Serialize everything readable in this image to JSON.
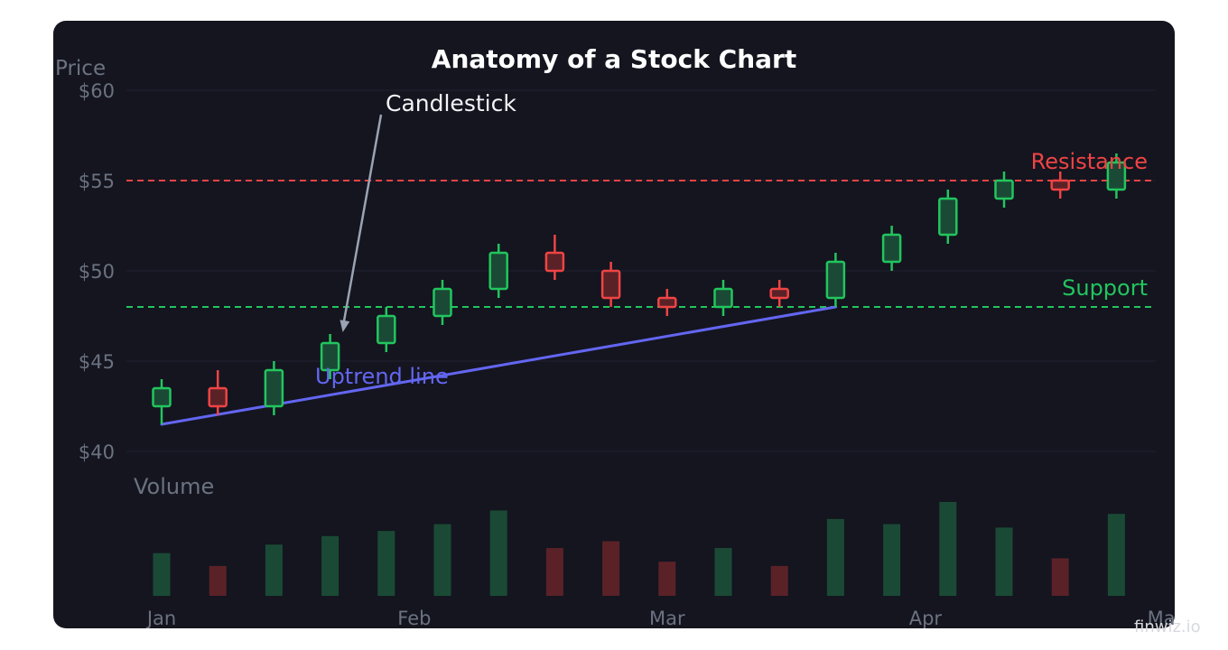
{
  "watermark": "finwiz.io",
  "colors": {
    "background": "#14151f",
    "grid": "#1f2130",
    "axis_text": "#6b7280",
    "title": "#ffffff",
    "up": "#22c55e",
    "up_fill": "#1a4a35",
    "down": "#ef4444",
    "down_fill": "#5a2227",
    "resistance": "#ef4444",
    "support": "#22c55e",
    "trend": "#6366f1",
    "annotation": "#f3f4f6",
    "arrow": "#9aa3b2"
  },
  "chart_data": {
    "type": "candlestick",
    "title": "Anatomy of a Stock Chart",
    "ylabel": "Price",
    "volume_label": "Volume",
    "ylim": [
      40,
      60
    ],
    "y_ticks": [
      {
        "value": 40,
        "label": "$40"
      },
      {
        "value": 45,
        "label": "$45"
      },
      {
        "value": 50,
        "label": "$50"
      },
      {
        "value": 55,
        "label": "$55"
      },
      {
        "value": 60,
        "label": "$60"
      }
    ],
    "x_ticks": [
      {
        "label": "Jan",
        "pos": 0
      },
      {
        "label": "Feb",
        "pos": 4.5
      },
      {
        "label": "Mar",
        "pos": 9
      },
      {
        "label": "Apr",
        "pos": 13.6
      },
      {
        "label": "May",
        "pos": 17.9
      }
    ],
    "candles": [
      {
        "open": 42.5,
        "close": 43.5,
        "high": 44.0,
        "low": 41.5,
        "volume": 50
      },
      {
        "open": 43.5,
        "close": 42.5,
        "high": 44.5,
        "low": 42.0,
        "volume": 35
      },
      {
        "open": 42.5,
        "close": 44.5,
        "high": 45.0,
        "low": 42.0,
        "volume": 60
      },
      {
        "open": 44.5,
        "close": 46.0,
        "high": 46.5,
        "low": 44.0,
        "volume": 70
      },
      {
        "open": 46.0,
        "close": 47.5,
        "high": 48.0,
        "low": 45.5,
        "volume": 76
      },
      {
        "open": 47.5,
        "close": 49.0,
        "high": 49.5,
        "low": 47.0,
        "volume": 84
      },
      {
        "open": 49.0,
        "close": 51.0,
        "high": 51.5,
        "low": 48.5,
        "volume": 100
      },
      {
        "open": 51.0,
        "close": 50.0,
        "high": 52.0,
        "low": 49.5,
        "volume": 56
      },
      {
        "open": 50.0,
        "close": 48.5,
        "high": 50.5,
        "low": 48.0,
        "volume": 64
      },
      {
        "open": 48.5,
        "close": 48.0,
        "high": 49.0,
        "low": 47.5,
        "volume": 40
      },
      {
        "open": 48.0,
        "close": 49.0,
        "high": 49.5,
        "low": 47.5,
        "volume": 56
      },
      {
        "open": 49.0,
        "close": 48.5,
        "high": 49.5,
        "low": 48.0,
        "volume": 35
      },
      {
        "open": 48.5,
        "close": 50.5,
        "high": 51.0,
        "low": 48.0,
        "volume": 90
      },
      {
        "open": 50.5,
        "close": 52.0,
        "high": 52.5,
        "low": 50.0,
        "volume": 84
      },
      {
        "open": 52.0,
        "close": 54.0,
        "high": 54.5,
        "low": 51.5,
        "volume": 110
      },
      {
        "open": 54.0,
        "close": 55.0,
        "high": 55.5,
        "low": 53.5,
        "volume": 80
      },
      {
        "open": 55.0,
        "close": 54.5,
        "high": 55.5,
        "low": 54.0,
        "volume": 44
      },
      {
        "open": 54.5,
        "close": 56.0,
        "high": 56.5,
        "low": 54.0,
        "volume": 96
      }
    ],
    "volume_max": 110,
    "resistance": {
      "value": 55,
      "label": "Resistance"
    },
    "support": {
      "value": 48,
      "label": "Support"
    },
    "trendline": {
      "start": {
        "index": 0,
        "value": 41.5
      },
      "end": {
        "index": 12,
        "value": 48.0
      },
      "label": "Uptrend line"
    },
    "annotation": {
      "label": "Candlestick",
      "target_index": 3
    }
  }
}
